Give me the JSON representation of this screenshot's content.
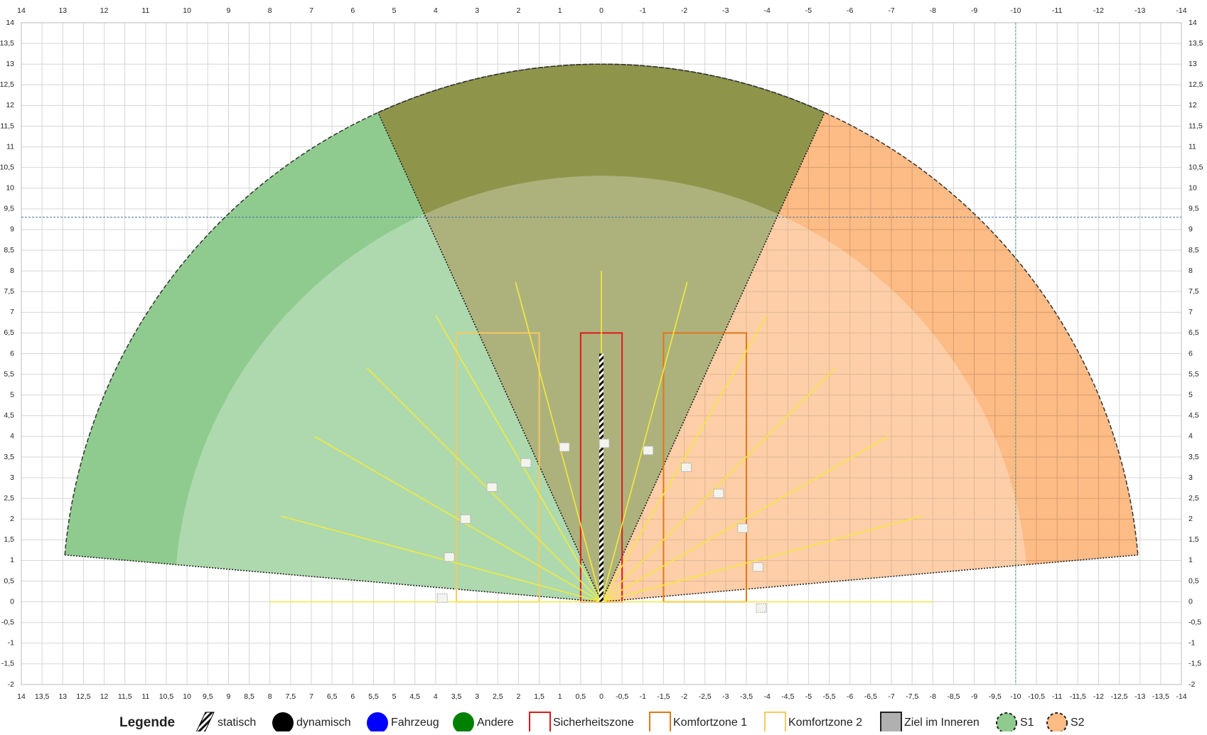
{
  "chart_data": {
    "type": "sensor",
    "xlim": [
      14,
      -14
    ],
    "ylim": [
      -2,
      14
    ],
    "grid": true,
    "x2ticks": [
      14,
      13,
      12,
      11,
      10,
      9,
      8,
      7,
      6,
      5,
      4,
      3,
      2,
      1,
      0,
      -1,
      -2,
      -3,
      -4,
      -5,
      -6,
      -7,
      -8,
      -9,
      -10,
      -11,
      -12,
      -13,
      -14
    ],
    "xticks": [
      14,
      {
        "value": 13.5,
        "label": "13,5"
      },
      13,
      {
        "value": 12.5,
        "label": "12,5"
      },
      12,
      {
        "value": 11.5,
        "label": "11,5"
      },
      11,
      {
        "value": 10.5,
        "label": "10,5"
      },
      10,
      {
        "value": 9.5,
        "label": "9,5"
      },
      9,
      {
        "value": 8.5,
        "label": "8,5"
      },
      8,
      {
        "value": 7.5,
        "label": "7,5"
      },
      7,
      {
        "value": 6.5,
        "label": "6,5"
      },
      6,
      {
        "value": 5.5,
        "label": "5,5"
      },
      5,
      {
        "value": 4.5,
        "label": "4,5"
      },
      4,
      {
        "value": 3.5,
        "label": "3,5"
      },
      3,
      {
        "value": 2.5,
        "label": "2,5"
      },
      2,
      {
        "value": 1.5,
        "label": "1,5"
      },
      1,
      {
        "value": 0.5,
        "label": "0,5"
      },
      0,
      {
        "value": -0.5,
        "label": "-0,5"
      },
      -1,
      {
        "value": -1.5,
        "label": "-1,5"
      },
      -2,
      {
        "value": -2.5,
        "label": "-2,5"
      },
      -3,
      {
        "value": -3.5,
        "label": "-3,5"
      },
      -4,
      {
        "value": -4.5,
        "label": "-4,5"
      },
      -5,
      {
        "value": -5.5,
        "label": "-5,5"
      },
      -6,
      {
        "value": -6.5,
        "label": "-6,5"
      },
      -7,
      {
        "value": -7.5,
        "label": "-7,5"
      },
      -8,
      {
        "value": -8.5,
        "label": "-8,5"
      },
      -9,
      {
        "value": -9.5,
        "label": "-9,5"
      },
      -10,
      {
        "value": -10.5,
        "label": "-10,5"
      },
      -11,
      {
        "value": -11.5,
        "label": "-11,5"
      },
      -12,
      {
        "value": -12.5,
        "label": "-12,5"
      },
      -13,
      {
        "value": -13.5,
        "label": "-13,5"
      },
      -14
    ],
    "yticks": [
      -2,
      {
        "value": -1.5,
        "label": "-1,5"
      },
      -1,
      {
        "value": -0.5,
        "label": "-0,5"
      },
      0,
      {
        "value": 0.5,
        "label": "0,5"
      },
      1,
      {
        "value": 1.5,
        "label": "1,5"
      },
      2,
      {
        "value": 2.5,
        "label": "2,5"
      },
      3,
      {
        "value": 3.5,
        "label": "3,5"
      },
      4,
      {
        "value": 4.5,
        "label": "4,5"
      },
      5,
      {
        "value": 5.5,
        "label": "5,5"
      },
      6,
      {
        "value": 6.5,
        "label": "6,5"
      },
      7,
      {
        "value": 7.5,
        "label": "7,5"
      },
      8,
      {
        "value": 8.5,
        "label": "8,5"
      },
      9,
      {
        "value": 9.5,
        "label": "9,5"
      },
      10,
      {
        "value": 10.5,
        "label": "10,5"
      },
      11,
      {
        "value": 11.5,
        "label": "11,5"
      },
      12,
      {
        "value": 12.5,
        "label": "12,5"
      },
      13,
      {
        "value": 13.5,
        "label": "13,5"
      },
      14
    ],
    "series": [
      {
        "name": "S1",
        "color": "#8fcb8f",
        "radius": 13,
        "start_angle": 5,
        "end_angle": 114.5
      },
      {
        "name": "S2",
        "color": "#fdbb85",
        "radius": 13,
        "start_angle": 65.5,
        "end_angle": 175
      }
    ],
    "inner_radius": 10.3,
    "rays": {
      "color": "#f2ea3c",
      "length": 8,
      "angles": [
        0,
        15,
        30,
        45,
        60,
        75,
        90,
        105,
        120,
        135,
        150,
        165,
        180
      ]
    },
    "zones": [
      {
        "color": "#e01818",
        "x": [
          0.5,
          -0.5
        ],
        "y": [
          0,
          6.5
        ]
      },
      {
        "color": "#e07818",
        "x": [
          -1.5,
          -3.5
        ],
        "y": [
          0,
          6.5
        ]
      },
      {
        "color": "#f8c860",
        "x": [
          3.5,
          1.5
        ],
        "y": [
          0,
          6.5
        ]
      }
    ],
    "static_object": {
      "x": 0,
      "y": [
        0,
        6
      ]
    },
    "targets": {
      "x": [
        3.67,
        3.28,
        2.64,
        1.82,
        0.89,
        -0.07,
        -1.13,
        -2.05,
        -2.83,
        -3.41,
        -3.78,
        3.84,
        -3.86
      ],
      "y": [
        1.08,
        2.0,
        2.77,
        3.36,
        3.74,
        3.83,
        3.66,
        3.25,
        2.62,
        1.78,
        0.84,
        0.09,
        -0.15
      ]
    },
    "crosshair": {
      "x": -10,
      "y": 9.3
    },
    "legend": {
      "title": "Legende",
      "entries": [
        {
          "label": "statisch",
          "color": "#000000",
          "icon": "hatch"
        },
        {
          "label": "dynamisch",
          "color": "#000000",
          "icon": "circle"
        },
        {
          "label": "Fahrzeug",
          "color": "#0000ff",
          "icon": "circle"
        },
        {
          "label": "Andere",
          "color": "#008000",
          "icon": "circle"
        },
        {
          "label": "Sicherheitszone",
          "color": "#e01818",
          "icon": "box"
        },
        {
          "label": "Komfortzone 1",
          "color": "#e07818",
          "icon": "box"
        },
        {
          "label": "Komfortzone 2",
          "color": "#f8c860",
          "icon": "box"
        },
        {
          "label": "Ziel im Inneren",
          "color": "#b0b0b0",
          "icon": "filled-box"
        },
        {
          "label": "S1",
          "color": "#8fcb8f",
          "icon": "dashed-circle"
        },
        {
          "label": "S2",
          "color": "#fdbb85",
          "icon": "dashed-circle"
        }
      ]
    }
  }
}
